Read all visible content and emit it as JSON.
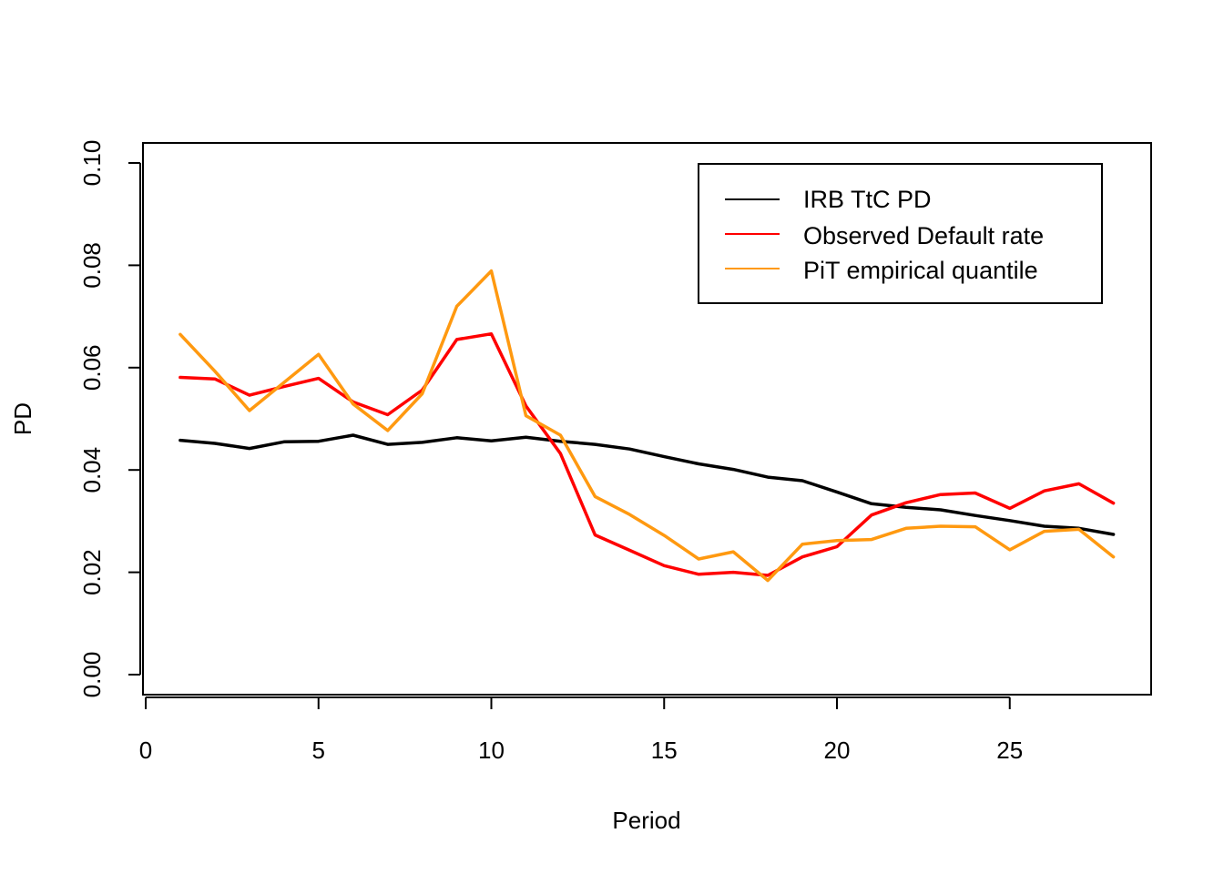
{
  "chart_data": {
    "type": "line",
    "title": "",
    "xlabel": "Period",
    "ylabel": "PD",
    "xlim": [
      0,
      29
    ],
    "ylim": [
      0,
      0.1
    ],
    "xticks": [
      0,
      5,
      10,
      15,
      20,
      25
    ],
    "xtick_labels": [
      "0",
      "5",
      "10",
      "15",
      "20",
      "25"
    ],
    "yticks": [
      0,
      0.02,
      0.04,
      0.06,
      0.08,
      0.1
    ],
    "ytick_labels": [
      "0.00",
      "0.02",
      "0.04",
      "0.06",
      "0.08",
      "0.10"
    ],
    "grid": false,
    "legend_position": "top-right",
    "x": [
      1,
      2,
      3,
      4,
      5,
      6,
      7,
      8,
      9,
      10,
      11,
      12,
      13,
      14,
      15,
      16,
      17,
      18,
      19,
      20,
      21,
      22,
      23,
      24,
      25,
      26,
      27,
      28
    ],
    "series": [
      {
        "name": "IRB TtC PD",
        "color": "#000000",
        "values": [
          0.0458,
          0.0452,
          0.0442,
          0.0455,
          0.0456,
          0.0468,
          0.045,
          0.0454,
          0.0463,
          0.0457,
          0.0464,
          0.0456,
          0.045,
          0.0441,
          0.0426,
          0.0412,
          0.0401,
          0.0386,
          0.0379,
          0.0357,
          0.0334,
          0.0327,
          0.0322,
          0.0311,
          0.0301,
          0.029,
          0.0286,
          0.0274
        ]
      },
      {
        "name": "Observed Default rate",
        "color": "#ff0000",
        "values": [
          0.0581,
          0.0578,
          0.0546,
          0.0563,
          0.0579,
          0.0533,
          0.0508,
          0.0556,
          0.0655,
          0.0666,
          0.0525,
          0.0432,
          0.0273,
          0.0243,
          0.0213,
          0.0196,
          0.02,
          0.0194,
          0.023,
          0.025,
          0.0312,
          0.0336,
          0.0352,
          0.0355,
          0.0325,
          0.0359,
          0.0373,
          0.0335
        ]
      },
      {
        "name": "PiT empirical quantile",
        "color": "#ff9910",
        "values": [
          0.0665,
          0.0593,
          0.0516,
          0.0571,
          0.0626,
          0.0529,
          0.0477,
          0.0549,
          0.072,
          0.0789,
          0.0506,
          0.0468,
          0.0348,
          0.0313,
          0.0272,
          0.0226,
          0.024,
          0.0184,
          0.0255,
          0.0262,
          0.0264,
          0.0286,
          0.029,
          0.0289,
          0.0244,
          0.028,
          0.0284,
          0.023
        ]
      }
    ]
  }
}
